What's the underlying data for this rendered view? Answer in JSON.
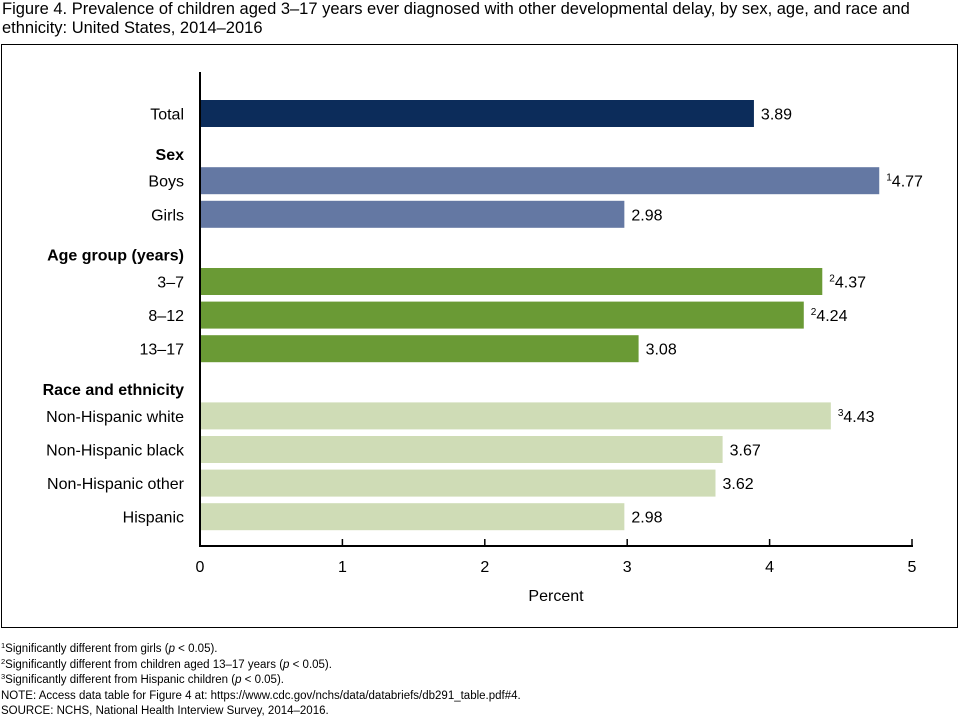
{
  "title": "Figure 4. Prevalence of children aged 3–17 years ever diagnosed with other developmental delay, by sex, age, and race and ethnicity: United States, 2014–2016",
  "chart_data": {
    "type": "bar",
    "orientation": "horizontal",
    "xlabel": "Percent",
    "xlim": [
      0,
      5
    ],
    "xticks": [
      0,
      1,
      2,
      3,
      4,
      5
    ],
    "grid": false,
    "colors": {
      "total": "#0c2c5a",
      "sex": "#6478a3",
      "age": "#6a9a35",
      "race": "#cfdcb6"
    },
    "groups": [
      {
        "heading": "",
        "color_key": "total",
        "bars": [
          {
            "label": "Total",
            "value": 3.89,
            "sup": ""
          }
        ]
      },
      {
        "heading": "Sex",
        "color_key": "sex",
        "bars": [
          {
            "label": "Boys",
            "value": 4.77,
            "sup": "1"
          },
          {
            "label": "Girls",
            "value": 2.98,
            "sup": ""
          }
        ]
      },
      {
        "heading": "Age group (years)",
        "color_key": "age",
        "bars": [
          {
            "label": "3–7",
            "value": 4.37,
            "sup": "2"
          },
          {
            "label": "8–12",
            "value": 4.24,
            "sup": "2"
          },
          {
            "label": "13–17",
            "value": 3.08,
            "sup": ""
          }
        ]
      },
      {
        "heading": "Race and ethnicity",
        "color_key": "race",
        "bars": [
          {
            "label": "Non-Hispanic white",
            "value": 4.43,
            "sup": "3"
          },
          {
            "label": "Non-Hispanic black",
            "value": 3.67,
            "sup": ""
          },
          {
            "label": "Non-Hispanic other",
            "value": 3.62,
            "sup": ""
          },
          {
            "label": "Hispanic",
            "value": 2.98,
            "sup": ""
          }
        ]
      }
    ]
  },
  "footnotes": {
    "fn1": {
      "sup": "1",
      "pre": "Significantly different from girls (",
      "p": "p",
      "post": " < 0.05)."
    },
    "fn2": {
      "sup": "2",
      "pre": "Significantly different from children aged 13–17 years (",
      "p": "p",
      "post": " < 0.05)."
    },
    "fn3": {
      "sup": "3",
      "pre": "Significantly different from Hispanic children (",
      "p": "p",
      "post": " < 0.05)."
    },
    "note": "NOTE: Access data table for Figure 4 at: https://www.cdc.gov/nchs/data/databriefs/db291_table.pdf#4.",
    "source": "SOURCE: NCHS, National Health Interview Survey, 2014–2016."
  }
}
